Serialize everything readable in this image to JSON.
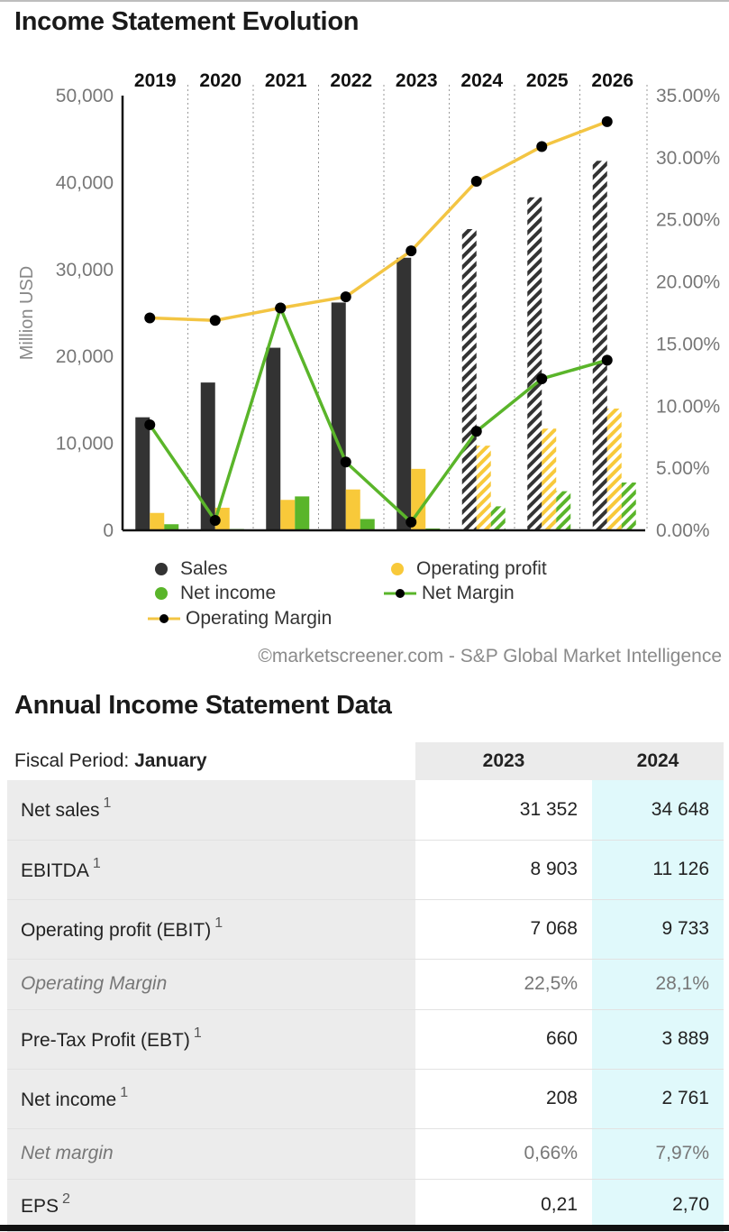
{
  "header": {
    "title": "Income Statement Evolution"
  },
  "chart_data": {
    "type": "bar",
    "categories": [
      "2019",
      "2020",
      "2021",
      "2022",
      "2023",
      "2024",
      "2025",
      "2026"
    ],
    "forecast_from_index": 5,
    "ylabel": "Million USD",
    "ylim": [
      0,
      50000
    ],
    "y_ticks": [
      "0",
      "10,000",
      "20,000",
      "30,000",
      "40,000",
      "50,000"
    ],
    "y2lim": [
      0,
      35
    ],
    "y2_ticks": [
      "0.00%",
      "5.00%",
      "10.00%",
      "15.00%",
      "20.00%",
      "25.00%",
      "30.00%",
      "35.00%"
    ],
    "series": [
      {
        "name": "Sales",
        "kind": "bar",
        "color": "#333333",
        "values": [
          13000,
          17000,
          21000,
          26200,
          31352,
          34648,
          38300,
          42500
        ]
      },
      {
        "name": "Operating profit",
        "kind": "bar",
        "color": "#f8c93a",
        "values": [
          2000,
          2600,
          3500,
          4700,
          7068,
          9733,
          11700,
          14000
        ]
      },
      {
        "name": "Net income",
        "kind": "bar",
        "color": "#5ab52a",
        "values": [
          700,
          150,
          3900,
          1300,
          208,
          2761,
          4500,
          5500
        ]
      },
      {
        "name": "Net Margin",
        "kind": "line",
        "axis": "right",
        "color": "#5ab52a",
        "values": [
          8.5,
          0.8,
          17.9,
          5.5,
          0.66,
          7.97,
          12.2,
          13.7
        ]
      },
      {
        "name": "Operating Margin",
        "kind": "line",
        "axis": "right",
        "color": "#f3c543",
        "values": [
          17.1,
          16.9,
          17.9,
          18.8,
          22.5,
          28.1,
          30.9,
          32.9
        ]
      }
    ],
    "legend": [
      {
        "label": "Sales",
        "symbol": "dot",
        "color": "#333333"
      },
      {
        "label": "Operating profit",
        "symbol": "dot",
        "color": "#f8c93a"
      },
      {
        "label": "Net income",
        "symbol": "dot",
        "color": "#5ab52a"
      },
      {
        "label": "Net Margin",
        "symbol": "line",
        "color": "#5ab52a"
      },
      {
        "label": "Operating Margin",
        "symbol": "line",
        "color": "#f3c543"
      }
    ],
    "grid": "vertical-dotted"
  },
  "credit": "©marketscreener.com - S&P Global Market Intelligence",
  "table": {
    "title": "Annual Income Statement Data",
    "period_label": "Fiscal Period:",
    "period_value": "January",
    "columns": [
      "2023",
      "2024"
    ],
    "rows": [
      {
        "label": "Net sales",
        "note": "1",
        "italic": false,
        "v2023": "31 352",
        "v2024": "34 648"
      },
      {
        "label": "EBITDA",
        "note": "1",
        "italic": false,
        "v2023": "8 903",
        "v2024": "11 126"
      },
      {
        "label": "Operating profit (EBIT)",
        "note": "1",
        "italic": false,
        "v2023": "7 068",
        "v2024": "9 733"
      },
      {
        "label": "Operating Margin",
        "note": "",
        "italic": true,
        "v2023": "22,5%",
        "v2024": "28,1%"
      },
      {
        "label": "Pre-Tax Profit (EBT)",
        "note": "1",
        "italic": false,
        "v2023": "660",
        "v2024": "3 889"
      },
      {
        "label": "Net income",
        "note": "1",
        "italic": false,
        "v2023": "208",
        "v2024": "2 761"
      },
      {
        "label": "Net margin",
        "note": "",
        "italic": true,
        "v2023": "0,66%",
        "v2024": "7,97%"
      },
      {
        "label": "EPS",
        "note": "2",
        "italic": false,
        "v2023": "0,21",
        "v2024": "2,70"
      }
    ]
  }
}
